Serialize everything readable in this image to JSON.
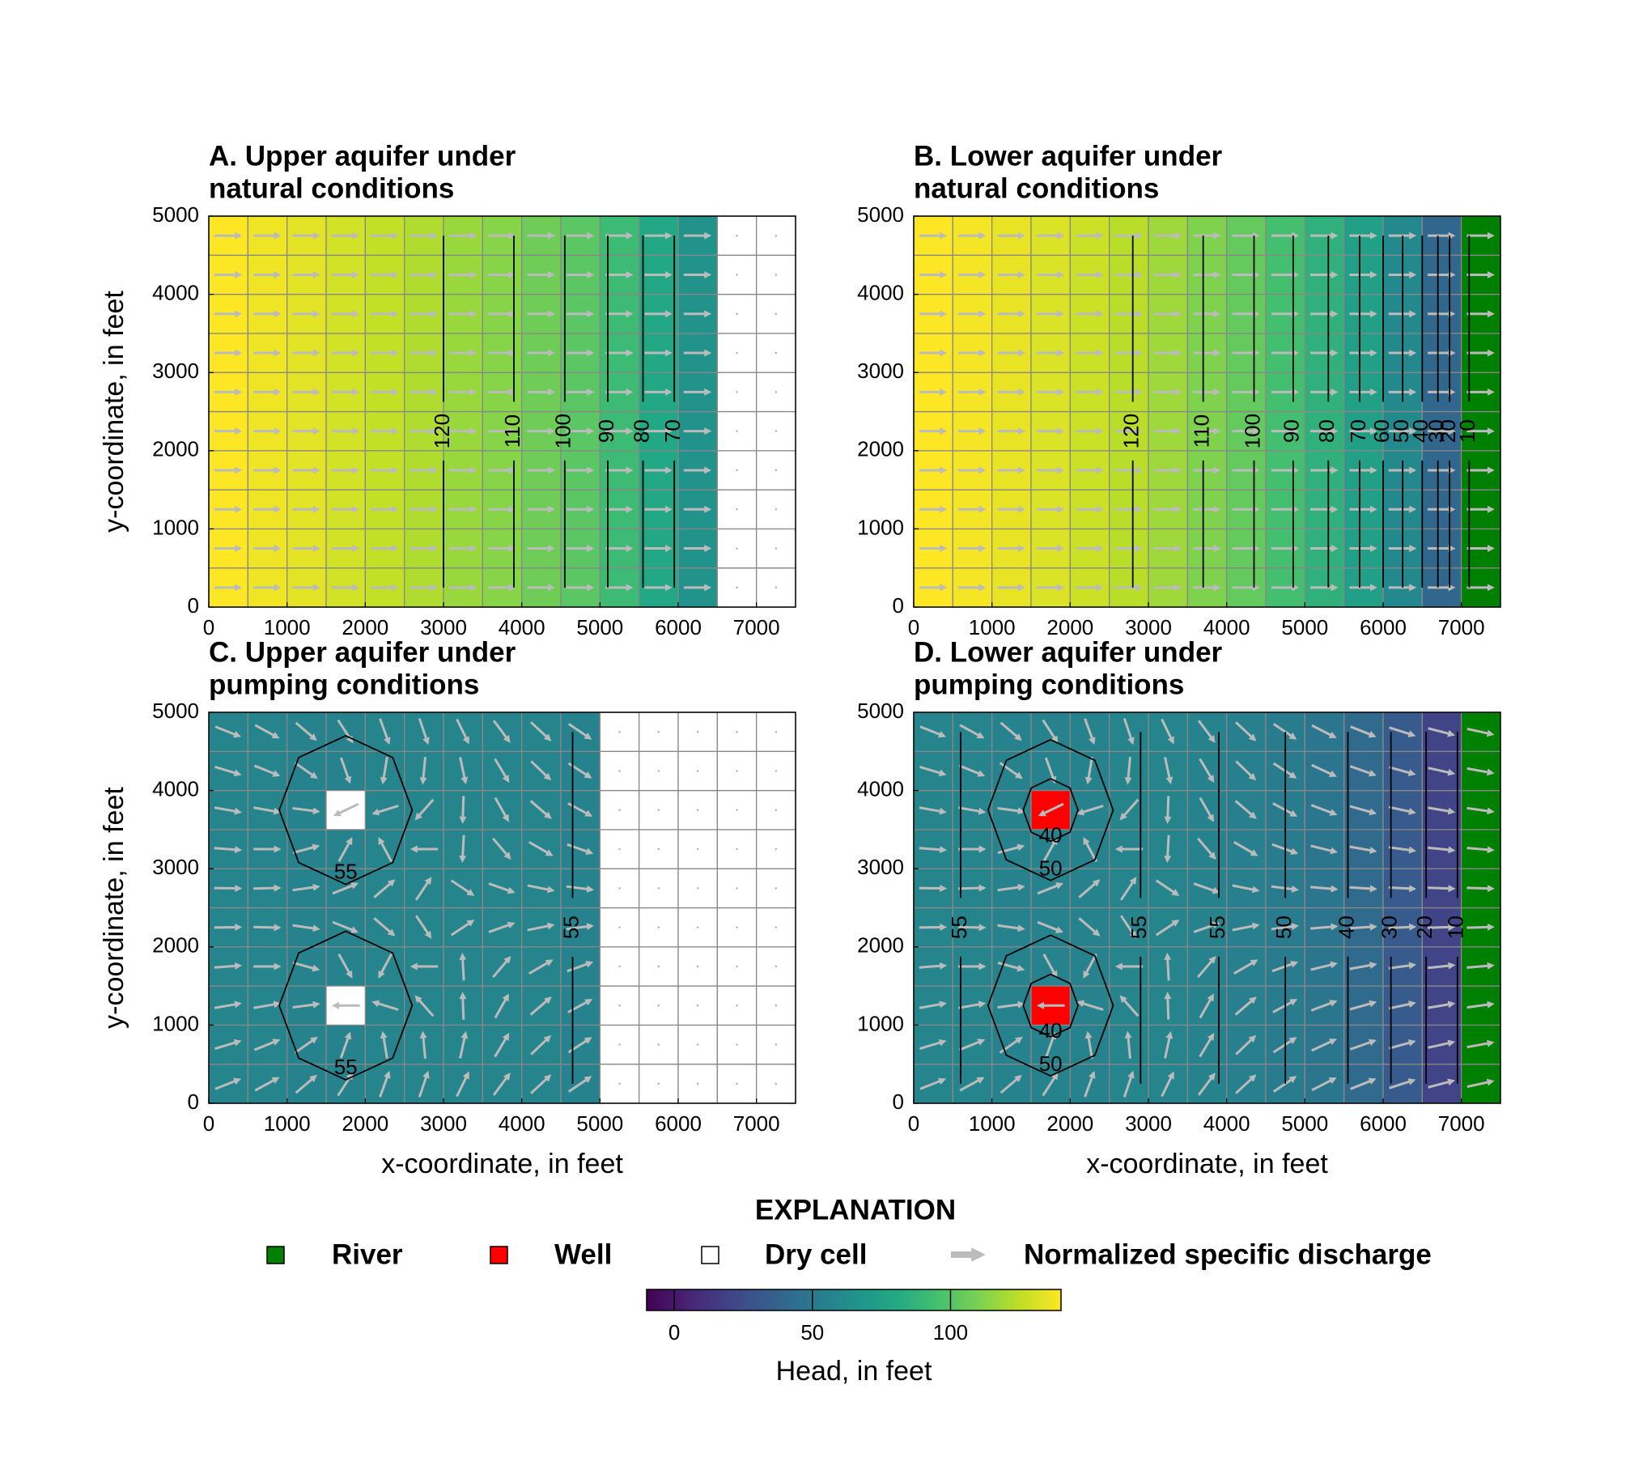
{
  "chart_data": [
    {
      "type": "heatmap",
      "title": [
        "A. Upper aquifer under",
        "natural conditions"
      ],
      "xlim": [
        0,
        7500
      ],
      "ylim": [
        0,
        5000
      ],
      "xticks": [
        0,
        1000,
        2000,
        3000,
        4000,
        5000,
        6000,
        7000
      ],
      "yticks": [
        0,
        1000,
        2000,
        3000,
        4000,
        5000
      ],
      "ylabel": "y-coordinate, in feet",
      "column_heads": [
        140,
        137,
        134,
        130,
        126,
        122,
        117,
        113,
        107,
        101,
        92,
        80,
        66,
        null,
        null
      ],
      "river_columns": [],
      "wells": [],
      "well_color": "#ff0000",
      "contours": [
        {
          "level": 120,
          "x": 3000
        },
        {
          "level": 110,
          "x": 3900
        },
        {
          "level": 100,
          "x": 4550
        },
        {
          "level": 90,
          "x": 5100
        },
        {
          "level": 80,
          "x": 5550
        },
        {
          "level": 70,
          "x": 5950
        }
      ],
      "loops": []
    },
    {
      "type": "heatmap",
      "title": [
        "B. Lower aquifer under",
        "natural conditions"
      ],
      "xlim": [
        0,
        7500
      ],
      "ylim": [
        0,
        5000
      ],
      "xticks": [
        0,
        1000,
        2000,
        3000,
        4000,
        5000,
        6000,
        7000
      ],
      "yticks": [
        0,
        1000,
        2000,
        3000,
        4000,
        5000
      ],
      "column_heads": [
        140,
        138,
        135,
        132,
        128,
        124,
        118,
        111,
        104,
        95,
        86,
        75,
        60,
        40,
        0
      ],
      "river_columns": [
        14
      ],
      "wells": [],
      "well_color": "#ff0000",
      "contours": [
        {
          "level": 120,
          "x": 2800
        },
        {
          "level": 110,
          "x": 3700
        },
        {
          "level": 100,
          "x": 4350
        },
        {
          "level": 90,
          "x": 4850
        },
        {
          "level": 80,
          "x": 5300
        },
        {
          "level": 70,
          "x": 5700
        },
        {
          "level": 60,
          "x": 6000
        },
        {
          "level": 50,
          "x": 6250
        },
        {
          "level": 40,
          "x": 6500
        },
        {
          "level": 30,
          "x": 6700
        },
        {
          "level": 20,
          "x": 6850
        },
        {
          "level": 10,
          "x": 7100
        }
      ],
      "loops": []
    },
    {
      "type": "heatmap",
      "title": [
        "C. Upper aquifer under",
        "pumping conditions"
      ],
      "xlim": [
        0,
        7500
      ],
      "ylim": [
        0,
        5000
      ],
      "xticks": [
        0,
        1000,
        2000,
        3000,
        4000,
        5000,
        6000,
        7000
      ],
      "yticks": [
        0,
        1000,
        2000,
        3000,
        4000,
        5000
      ],
      "xlabel": "x-coordinate, in feet",
      "ylabel": "y-coordinate, in feet",
      "column_heads": [
        57,
        57,
        56,
        56,
        57,
        57,
        57,
        57,
        57,
        56,
        null,
        null,
        null,
        null,
        null
      ],
      "river_columns": [],
      "wells": [
        [
          3,
          7
        ],
        [
          3,
          2
        ]
      ],
      "well_color": "#ffffff",
      "contours": [
        {
          "level": 55,
          "x": 4650
        }
      ],
      "loops": [
        {
          "level": 55,
          "center": [
            1750,
            3750
          ],
          "radius": [
            850,
            950
          ]
        },
        {
          "level": 55,
          "center": [
            1750,
            1250
          ],
          "radius": [
            850,
            950
          ]
        }
      ]
    },
    {
      "type": "heatmap",
      "title": [
        "D. Lower aquifer under",
        "pumping conditions"
      ],
      "xlim": [
        0,
        7500
      ],
      "ylim": [
        0,
        5000
      ],
      "xticks": [
        0,
        1000,
        2000,
        3000,
        4000,
        5000,
        6000,
        7000
      ],
      "yticks": [
        0,
        1000,
        2000,
        3000,
        4000,
        5000
      ],
      "xlabel": "x-coordinate, in feet",
      "column_heads": [
        57,
        57,
        56,
        56,
        56,
        57,
        57,
        56,
        54,
        52,
        48,
        42,
        33,
        20,
        0
      ],
      "river_columns": [
        14
      ],
      "wells": [
        [
          3,
          7
        ],
        [
          3,
          2
        ]
      ],
      "well_color": "#ff0000",
      "contours": [
        {
          "level": 55,
          "x": 600
        },
        {
          "level": 55,
          "x": 2900
        },
        {
          "level": 55,
          "x": 3900
        },
        {
          "level": 50,
          "x": 4750
        },
        {
          "level": 40,
          "x": 5550
        },
        {
          "level": 30,
          "x": 6100
        },
        {
          "level": 20,
          "x": 6550
        },
        {
          "level": 10,
          "x": 6950
        }
      ],
      "loops": [
        {
          "level": 40,
          "center": [
            1750,
            3750
          ],
          "radius": [
            350,
            400
          ]
        },
        {
          "level": 50,
          "center": [
            1750,
            3750
          ],
          "radius": [
            800,
            900
          ]
        },
        {
          "level": 40,
          "center": [
            1750,
            1250
          ],
          "radius": [
            350,
            400
          ]
        },
        {
          "level": 50,
          "center": [
            1750,
            1250
          ],
          "radius": [
            800,
            900
          ]
        }
      ]
    }
  ],
  "explanation": {
    "title": "EXPLANATION",
    "items": [
      {
        "label": "River",
        "color": "#008000"
      },
      {
        "label": "Well",
        "color": "#ff0000"
      },
      {
        "label": "Dry cell",
        "color": "#ffffff"
      },
      {
        "label": "Normalized specific discharge",
        "color": "#bbbbbb"
      }
    ],
    "colorbar": {
      "label": "Head, in feet",
      "lim": [
        -10,
        140
      ],
      "ticks": [
        0,
        50,
        100
      ]
    }
  }
}
